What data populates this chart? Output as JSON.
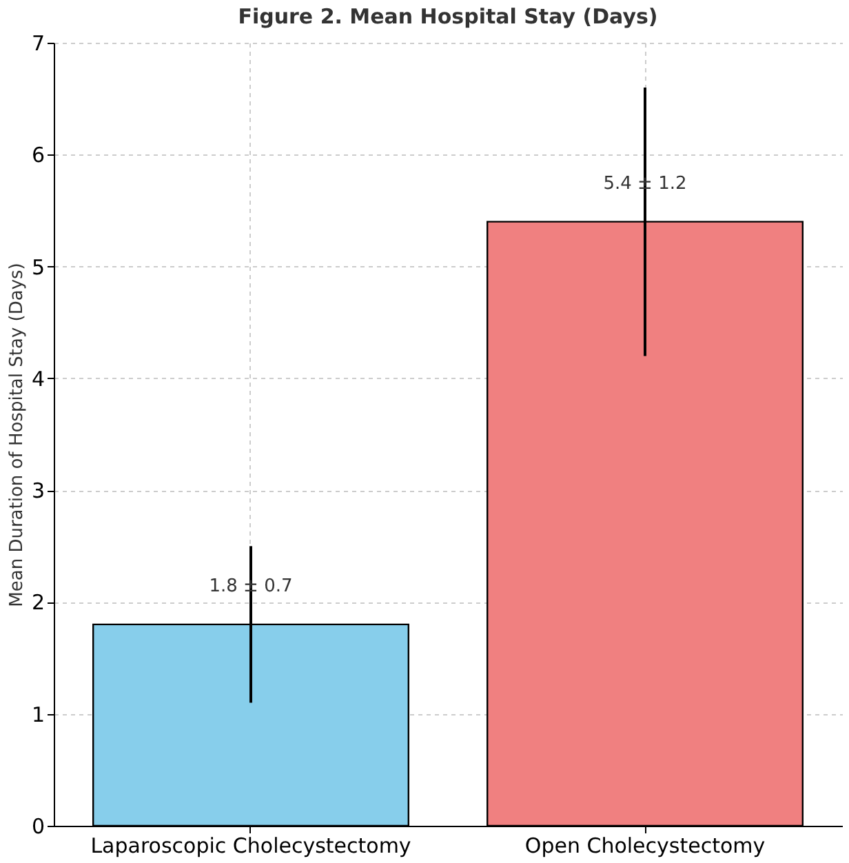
{
  "chart_data": {
    "type": "bar",
    "title": "Figure 2. Mean Hospital Stay (Days)",
    "ylabel": "Mean Duration of Hospital Stay (Days)",
    "categories": [
      "Laparoscopic Cholecystectomy",
      "Open Cholecystectomy"
    ],
    "values": [
      1.8,
      5.4
    ],
    "colors": [
      "#87ceeb",
      "#f08080"
    ],
    "errors": [
      0.7,
      1.2
    ],
    "value_labels": [
      "1.8 ± 0.7",
      "5.4 ± 1.2"
    ],
    "ylim": [
      0,
      7
    ],
    "yticks": [
      0,
      1,
      2,
      3,
      4,
      5,
      6,
      7
    ],
    "grid": true
  }
}
